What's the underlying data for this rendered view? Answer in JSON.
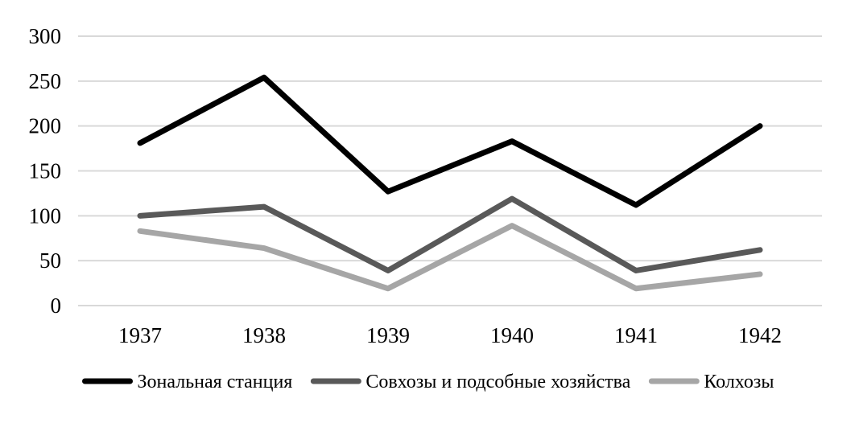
{
  "chart_data": {
    "type": "line",
    "title": "",
    "xlabel": "",
    "ylabel": "",
    "categories": [
      "1937",
      "1938",
      "1939",
      "1940",
      "1941",
      "1942"
    ],
    "ylim": [
      0,
      300
    ],
    "yticks": [
      "0",
      "50",
      "100",
      "150",
      "200",
      "250",
      "300"
    ],
    "grid": true,
    "legend_position": "bottom",
    "series": [
      {
        "name": "Зональная станция",
        "color": "#000000",
        "values": [
          181,
          254,
          127,
          183,
          112,
          200
        ]
      },
      {
        "name": "Совхозы и подсобные хозяйства",
        "color": "#595959",
        "values": [
          100,
          110,
          39,
          119,
          39,
          62
        ]
      },
      {
        "name": "Колхозы",
        "color": "#a6a6a6",
        "values": [
          83,
          64,
          19,
          89,
          19,
          35
        ]
      }
    ]
  }
}
